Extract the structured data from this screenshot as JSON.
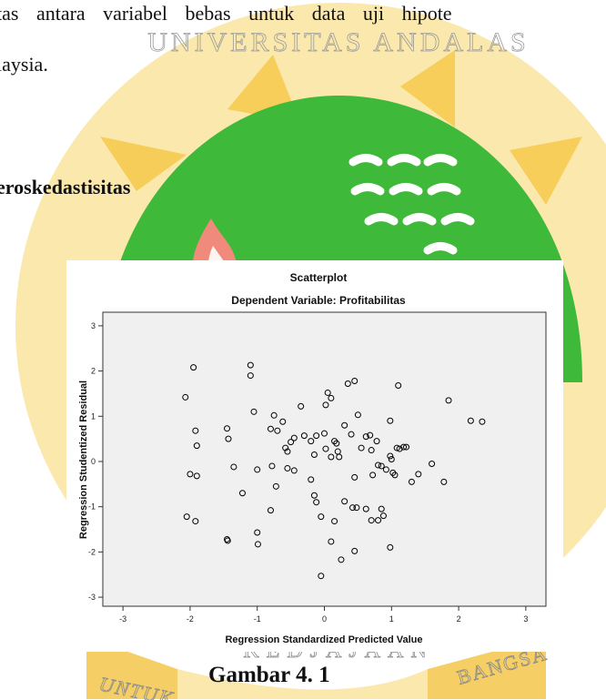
{
  "page": {
    "line1": "tas antara variabel bebas untuk data uji hipote",
    "line2": "laysia.",
    "heading": "eroskedastisitas",
    "caption": "Gambar 4. 1"
  },
  "watermark": {
    "top_text": "UNIVERSITAS ANDALAS",
    "left_text": "UNTUK",
    "middle_text": "KEDJAJAAN",
    "right_text": "BANGSA",
    "colors": {
      "gold": "#f3c340",
      "green": "#3fb93a",
      "flame": "#f08a7a"
    }
  },
  "chart_data": {
    "type": "scatter",
    "title": "Scatterplot",
    "subtitle": "Dependent Variable: Profitabilitas",
    "xlabel": "Regression Standardized Predicted Value",
    "ylabel": "Regression Studentized Residual",
    "xlim": [
      -3.3,
      3.3
    ],
    "ylim": [
      -3.2,
      3.3
    ],
    "xticks": [
      -3,
      -2,
      -1,
      0,
      1,
      2,
      3
    ],
    "yticks": [
      -3,
      -2,
      -1,
      0,
      1,
      2,
      3
    ],
    "grid": false,
    "plot_background": "#f0f0f0",
    "marker_color": "#000000",
    "points": [
      [
        -1.95,
        2.08
      ],
      [
        -1.1,
        2.13
      ],
      [
        -1.1,
        1.9
      ],
      [
        -2.07,
        1.42
      ],
      [
        -1.92,
        0.68
      ],
      [
        -1.9,
        0.35
      ],
      [
        -1.45,
        0.73
      ],
      [
        -1.43,
        0.5
      ],
      [
        -1.05,
        1.1
      ],
      [
        -0.75,
        1.02
      ],
      [
        -0.7,
        0.68
      ],
      [
        -0.62,
        0.88
      ],
      [
        -0.8,
        0.72
      ],
      [
        -0.35,
        1.22
      ],
      [
        0.05,
        1.52
      ],
      [
        0.1,
        1.4
      ],
      [
        0.02,
        1.25
      ],
      [
        0.35,
        1.72
      ],
      [
        0.45,
        1.78
      ],
      [
        0.5,
        1.03
      ],
      [
        1.1,
        1.68
      ],
      [
        1.85,
        1.35
      ],
      [
        2.18,
        0.9
      ],
      [
        2.35,
        0.88
      ],
      [
        0.98,
        0.9
      ],
      [
        -2.0,
        -0.28
      ],
      [
        -1.9,
        -0.32
      ],
      [
        -1.35,
        -0.12
      ],
      [
        -1.0,
        -0.18
      ],
      [
        -1.22,
        -0.7
      ],
      [
        -0.78,
        -0.1
      ],
      [
        -0.72,
        -0.55
      ],
      [
        -0.55,
        -0.15
      ],
      [
        -0.45,
        -0.2
      ],
      [
        -0.58,
        0.3
      ],
      [
        -0.55,
        0.22
      ],
      [
        -0.5,
        0.43
      ],
      [
        -0.45,
        0.52
      ],
      [
        -0.3,
        0.57
      ],
      [
        -0.2,
        0.45
      ],
      [
        -0.15,
        0.15
      ],
      [
        -0.12,
        0.57
      ],
      [
        0.0,
        0.62
      ],
      [
        0.02,
        0.28
      ],
      [
        0.1,
        0.1
      ],
      [
        0.15,
        0.45
      ],
      [
        0.18,
        0.4
      ],
      [
        0.2,
        0.22
      ],
      [
        0.22,
        0.1
      ],
      [
        0.3,
        0.8
      ],
      [
        0.4,
        0.6
      ],
      [
        0.45,
        -0.35
      ],
      [
        0.55,
        0.3
      ],
      [
        0.62,
        0.55
      ],
      [
        0.68,
        0.58
      ],
      [
        0.7,
        0.25
      ],
      [
        0.72,
        -0.3
      ],
      [
        0.78,
        0.45
      ],
      [
        0.8,
        -0.08
      ],
      [
        0.85,
        -0.1
      ],
      [
        0.92,
        -0.18
      ],
      [
        0.98,
        0.12
      ],
      [
        1.0,
        0.05
      ],
      [
        1.02,
        -0.25
      ],
      [
        1.05,
        -0.3
      ],
      [
        1.08,
        0.3
      ],
      [
        1.12,
        0.28
      ],
      [
        1.18,
        0.32
      ],
      [
        1.22,
        0.32
      ],
      [
        1.3,
        -0.45
      ],
      [
        1.4,
        -0.28
      ],
      [
        1.6,
        -0.05
      ],
      [
        1.78,
        -0.45
      ],
      [
        -0.2,
        -0.4
      ],
      [
        -0.15,
        -0.75
      ],
      [
        -0.12,
        -0.9
      ],
      [
        -0.05,
        -1.22
      ],
      [
        0.15,
        -1.32
      ],
      [
        0.3,
        -0.88
      ],
      [
        0.42,
        -1.02
      ],
      [
        0.48,
        -1.02
      ],
      [
        0.62,
        -1.05
      ],
      [
        0.7,
        -1.3
      ],
      [
        0.8,
        -1.3
      ],
      [
        0.85,
        -1.05
      ],
      [
        0.88,
        -1.2
      ],
      [
        -0.8,
        -1.08
      ],
      [
        -2.05,
        -1.22
      ],
      [
        -1.92,
        -1.32
      ],
      [
        -1.45,
        -1.72
      ],
      [
        -1.44,
        -1.75
      ],
      [
        -1.0,
        -1.57
      ],
      [
        -0.99,
        -1.83
      ],
      [
        0.1,
        -1.77
      ],
      [
        0.45,
        -1.98
      ],
      [
        0.98,
        -1.9
      ],
      [
        0.25,
        -2.17
      ],
      [
        -0.05,
        -2.53
      ]
    ]
  }
}
